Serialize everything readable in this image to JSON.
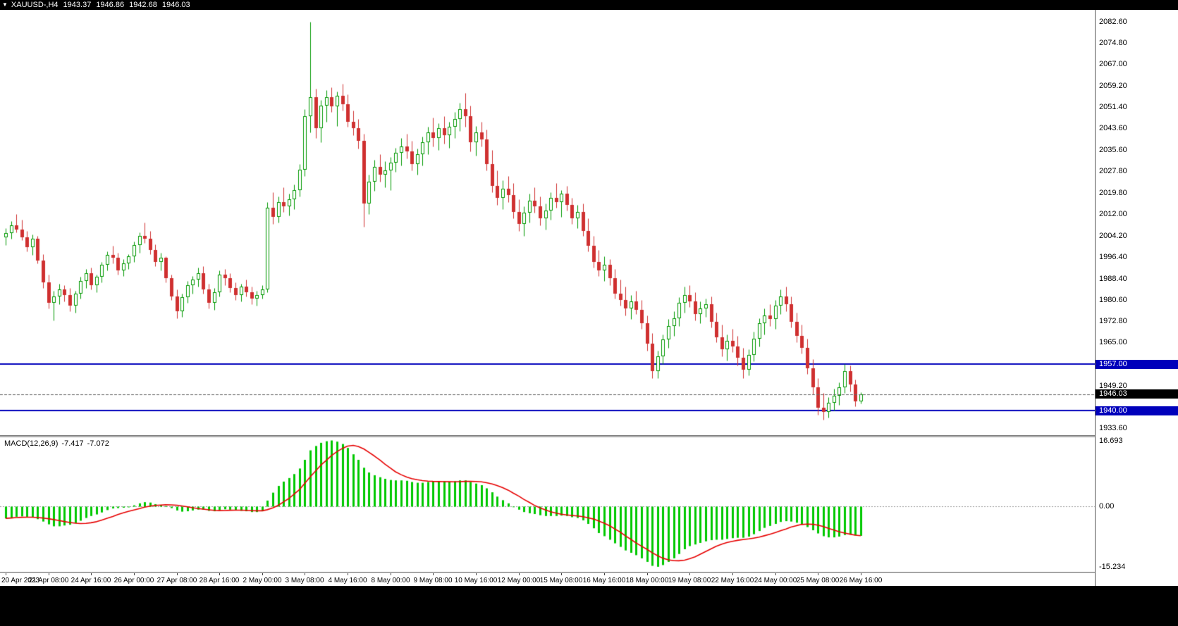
{
  "title_bar": {
    "menu_icon": "▼",
    "symbol": "XAUUSD-,H4",
    "open": "1943.37",
    "high": "1946.86",
    "low": "1942.68",
    "close": "1946.03"
  },
  "macd_label": {
    "name": "MACD(12,26,9)",
    "macd_value": "-7.417",
    "signal_value": "-7.072"
  },
  "price_scale": {
    "labels": [
      "2082.60",
      "2074.80",
      "2067.00",
      "2059.20",
      "2051.40",
      "2043.60",
      "2035.60",
      "2027.80",
      "2019.80",
      "2012.00",
      "2004.20",
      "1996.40",
      "1988.40",
      "1980.60",
      "1972.80",
      "1965.00",
      "1949.20",
      "1933.60"
    ],
    "macd_labels": [
      "16.693",
      "0.00",
      "-15.234"
    ],
    "level_boxes": [
      {
        "text": "1957.00",
        "value": 1957.0,
        "bg": "#0000bb"
      },
      {
        "text": "1946.03",
        "value": 1946.03,
        "bg": "#000000"
      },
      {
        "text": "1940.00",
        "value": 1940.0,
        "bg": "#0000bb"
      }
    ]
  },
  "x_axis": {
    "candles_per_label": 8,
    "labels": [
      "20 Apr 2023",
      "21 Apr 08:00",
      "24 Apr 16:00",
      "26 Apr 00:00",
      "27 Apr 08:00",
      "28 Apr 16:00",
      "2 May 00:00",
      "3 May 08:00",
      "4 May 16:00",
      "8 May 00:00",
      "9 May 08:00",
      "10 May 16:00",
      "12 May 00:00",
      "15 May 08:00",
      "16 May 16:00",
      "18 May 00:00",
      "19 May 08:00",
      "22 May 16:00",
      "24 May 00:00",
      "25 May 08:00",
      "26 May 16:00"
    ]
  },
  "chart_data": [
    {
      "type": "candlestick",
      "title": "XAUUSD- H4",
      "ylim": [
        1931,
        2087
      ],
      "levels": [
        1957.0,
        1940.0
      ],
      "bid": 1946.03,
      "ohlc": [
        [
          2003.5,
          2007.0,
          2000.8,
          2005.2
        ],
        [
          2005.2,
          2009.5,
          2003.0,
          2008.0
        ],
        [
          2008.0,
          2012.2,
          2005.5,
          2006.5
        ],
        [
          2006.5,
          2010.0,
          2002.5,
          2003.5
        ],
        [
          2003.5,
          2006.0,
          1998.5,
          2000.0
        ],
        [
          2000.0,
          2004.5,
          1997.0,
          2003.0
        ],
        [
          2003.0,
          2004.0,
          1994.0,
          1995.0
        ],
        [
          1995.0,
          1997.5,
          1985.0,
          1987.0
        ],
        [
          1987.0,
          1990.0,
          1977.5,
          1979.5
        ],
        [
          1979.5,
          1984.0,
          1973.1,
          1982.0
        ],
        [
          1982.0,
          1986.5,
          1979.0,
          1984.5
        ],
        [
          1984.5,
          1986.0,
          1980.0,
          1982.5
        ],
        [
          1982.5,
          1985.0,
          1976.5,
          1978.5
        ],
        [
          1978.5,
          1984.0,
          1976.0,
          1982.8
        ],
        [
          1982.8,
          1989.0,
          1981.0,
          1987.5
        ],
        [
          1987.5,
          1992.0,
          1985.0,
          1990.5
        ],
        [
          1990.5,
          1992.5,
          1984.5,
          1986.0
        ],
        [
          1986.0,
          1990.0,
          1983.5,
          1989.0
        ],
        [
          1989.0,
          1994.5,
          1987.0,
          1993.5
        ],
        [
          1993.5,
          1998.5,
          1991.5,
          1997.0
        ],
        [
          1997.0,
          2000.5,
          1994.0,
          1996.0
        ],
        [
          1996.0,
          1998.0,
          1990.0,
          1991.5
        ],
        [
          1991.5,
          1995.5,
          1989.5,
          1994.0
        ],
        [
          1994.0,
          1997.5,
          1992.0,
          1996.5
        ],
        [
          1996.5,
          2002.0,
          1994.5,
          2000.8
        ],
        [
          2000.8,
          2005.5,
          1998.0,
          2004.0
        ],
        [
          2004.0,
          2009.0,
          2001.5,
          2003.0
        ],
        [
          2003.0,
          2006.0,
          1997.5,
          1999.0
        ],
        [
          1999.0,
          2001.0,
          1993.0,
          1994.5
        ],
        [
          1994.5,
          1998.0,
          1991.5,
          1996.0
        ],
        [
          1996.0,
          1996.5,
          1987.0,
          1988.5
        ],
        [
          1988.5,
          1990.0,
          1980.5,
          1982.0
        ],
        [
          1982.0,
          1984.5,
          1974.0,
          1976.5
        ],
        [
          1976.5,
          1983.0,
          1974.5,
          1981.5
        ],
        [
          1981.5,
          1987.5,
          1979.5,
          1986.0
        ],
        [
          1986.0,
          1989.5,
          1983.0,
          1988.0
        ],
        [
          1988.0,
          1992.5,
          1985.5,
          1990.5
        ],
        [
          1990.5,
          1993.0,
          1983.0,
          1984.5
        ],
        [
          1984.5,
          1986.5,
          1977.5,
          1979.5
        ],
        [
          1979.5,
          1985.0,
          1977.0,
          1983.5
        ],
        [
          1983.5,
          1991.5,
          1982.0,
          1990.0
        ],
        [
          1990.0,
          1992.0,
          1986.0,
          1988.5
        ],
        [
          1988.5,
          1990.5,
          1983.5,
          1985.0
        ],
        [
          1985.0,
          1987.0,
          1980.5,
          1982.5
        ],
        [
          1982.5,
          1986.5,
          1980.0,
          1985.5
        ],
        [
          1985.5,
          1988.0,
          1982.0,
          1983.5
        ],
        [
          1983.5,
          1985.5,
          1979.0,
          1981.0
        ],
        [
          1981.0,
          1984.0,
          1978.5,
          1982.5
        ],
        [
          1982.5,
          1986.0,
          1981.0,
          1984.5
        ],
        [
          1984.5,
          2016.5,
          1983.5,
          2014.5
        ],
        [
          2014.5,
          2020.0,
          2008.5,
          2011.0
        ],
        [
          2011.0,
          2018.5,
          2009.0,
          2016.5
        ],
        [
          2016.5,
          2022.0,
          2013.0,
          2015.0
        ],
        [
          2015.0,
          2019.5,
          2011.5,
          2017.5
        ],
        [
          2017.5,
          2023.0,
          2014.0,
          2021.0
        ],
        [
          2021.0,
          2030.5,
          2018.5,
          2028.5
        ],
        [
          2028.5,
          2050.5,
          2026.0,
          2048.0
        ],
        [
          2048.0,
          2082.6,
          2042.0,
          2055.0
        ],
        [
          2055.0,
          2058.0,
          2040.0,
          2043.5
        ],
        [
          2043.5,
          2054.0,
          2038.5,
          2052.0
        ],
        [
          2052.0,
          2057.5,
          2046.0,
          2055.0
        ],
        [
          2055.0,
          2058.5,
          2049.5,
          2051.5
        ],
        [
          2051.5,
          2057.0,
          2044.5,
          2055.5
        ],
        [
          2055.5,
          2060.0,
          2050.0,
          2052.5
        ],
        [
          2052.5,
          2056.0,
          2044.0,
          2046.0
        ],
        [
          2046.0,
          2050.0,
          2041.0,
          2043.5
        ],
        [
          2043.5,
          2047.0,
          2036.0,
          2039.0
        ],
        [
          2039.0,
          2041.5,
          2007.5,
          2016.0
        ],
        [
          2016.0,
          2026.5,
          2012.0,
          2024.0
        ],
        [
          2024.0,
          2032.0,
          2020.5,
          2029.5
        ],
        [
          2029.5,
          2034.0,
          2024.0,
          2026.5
        ],
        [
          2026.5,
          2031.5,
          2022.0,
          2028.0
        ],
        [
          2028.0,
          2033.0,
          2021.0,
          2031.0
        ],
        [
          2031.0,
          2036.5,
          2027.5,
          2034.5
        ],
        [
          2034.5,
          2040.0,
          2030.0,
          2037.0
        ],
        [
          2037.0,
          2041.5,
          2032.5,
          2035.0
        ],
        [
          2035.0,
          2039.0,
          2028.0,
          2030.5
        ],
        [
          2030.5,
          2036.0,
          2026.5,
          2034.0
        ],
        [
          2034.0,
          2040.5,
          2030.0,
          2038.5
        ],
        [
          2038.5,
          2044.0,
          2034.0,
          2042.0
        ],
        [
          2042.0,
          2047.5,
          2037.0,
          2040.0
        ],
        [
          2040.0,
          2045.5,
          2035.5,
          2043.5
        ],
        [
          2043.5,
          2048.0,
          2038.0,
          2041.0
        ],
        [
          2041.0,
          2046.0,
          2036.5,
          2044.0
        ],
        [
          2044.0,
          2049.5,
          2040.0,
          2047.0
        ],
        [
          2047.0,
          2053.0,
          2042.5,
          2050.5
        ],
        [
          2050.5,
          2056.5,
          2044.0,
          2048.0
        ],
        [
          2048.0,
          2052.0,
          2035.0,
          2038.5
        ],
        [
          2038.5,
          2044.5,
          2033.5,
          2042.0
        ],
        [
          2042.0,
          2046.0,
          2037.0,
          2039.5
        ],
        [
          2039.5,
          2043.0,
          2028.0,
          2030.5
        ],
        [
          2030.5,
          2035.5,
          2020.0,
          2022.5
        ],
        [
          2022.5,
          2028.0,
          2015.5,
          2018.0
        ],
        [
          2018.0,
          2024.5,
          2014.0,
          2021.5
        ],
        [
          2021.5,
          2026.0,
          2016.5,
          2019.0
        ],
        [
          2019.0,
          2023.5,
          2010.5,
          2013.0
        ],
        [
          2013.0,
          2017.5,
          2006.0,
          2008.5
        ],
        [
          2008.5,
          2015.0,
          2004.0,
          2012.5
        ],
        [
          2012.5,
          2019.5,
          2009.0,
          2017.0
        ],
        [
          2017.0,
          2022.0,
          2012.5,
          2015.0
        ],
        [
          2015.0,
          2018.5,
          2008.0,
          2010.5
        ],
        [
          2010.5,
          2016.0,
          2006.5,
          2013.5
        ],
        [
          2013.5,
          2020.0,
          2010.0,
          2018.0
        ],
        [
          2018.0,
          2023.5,
          2014.5,
          2016.5
        ],
        [
          2016.5,
          2021.0,
          2011.0,
          2019.5
        ],
        [
          2019.5,
          2022.5,
          2013.5,
          2015.5
        ],
        [
          2015.5,
          2018.0,
          2008.5,
          2010.5
        ],
        [
          2010.5,
          2015.5,
          2007.0,
          2013.0
        ],
        [
          2013.0,
          2016.0,
          2004.0,
          2006.0
        ],
        [
          2006.0,
          2010.5,
          1998.5,
          2000.5
        ],
        [
          2000.5,
          2004.0,
          1992.5,
          1994.5
        ],
        [
          1994.5,
          1999.0,
          1989.5,
          1991.5
        ],
        [
          1991.5,
          1996.5,
          1987.5,
          1993.5
        ],
        [
          1993.5,
          1995.5,
          1986.0,
          1988.5
        ],
        [
          1988.5,
          1992.0,
          1981.0,
          1983.0
        ],
        [
          1983.0,
          1988.0,
          1978.5,
          1980.5
        ],
        [
          1980.5,
          1985.5,
          1975.0,
          1977.5
        ],
        [
          1977.5,
          1982.5,
          1973.5,
          1980.0
        ],
        [
          1980.0,
          1984.0,
          1975.5,
          1977.0
        ],
        [
          1977.0,
          1980.5,
          1970.0,
          1972.0
        ],
        [
          1972.0,
          1975.0,
          1962.0,
          1964.5
        ],
        [
          1964.5,
          1968.5,
          1951.9,
          1954.5
        ],
        [
          1954.5,
          1962.0,
          1952.0,
          1960.0
        ],
        [
          1960.0,
          1968.0,
          1957.0,
          1966.0
        ],
        [
          1966.0,
          1973.5,
          1963.0,
          1971.0
        ],
        [
          1971.0,
          1976.5,
          1967.5,
          1974.0
        ],
        [
          1974.0,
          1981.5,
          1971.0,
          1979.5
        ],
        [
          1979.5,
          1985.5,
          1976.0,
          1982.5
        ],
        [
          1982.5,
          1986.0,
          1978.0,
          1980.0
        ],
        [
          1980.0,
          1983.5,
          1973.0,
          1975.5
        ],
        [
          1975.5,
          1980.0,
          1972.0,
          1977.5
        ],
        [
          1977.5,
          1981.0,
          1974.5,
          1979.0
        ],
        [
          1979.0,
          1982.0,
          1970.5,
          1972.5
        ],
        [
          1972.5,
          1976.0,
          1965.0,
          1967.0
        ],
        [
          1967.0,
          1971.5,
          1960.0,
          1962.5
        ],
        [
          1962.5,
          1968.0,
          1958.5,
          1965.5
        ],
        [
          1965.5,
          1970.0,
          1961.5,
          1963.5
        ],
        [
          1963.5,
          1967.5,
          1956.5,
          1959.5
        ],
        [
          1959.5,
          1963.0,
          1951.8,
          1955.0
        ],
        [
          1955.0,
          1962.5,
          1953.0,
          1960.5
        ],
        [
          1960.5,
          1969.0,
          1958.0,
          1966.5
        ],
        [
          1966.5,
          1974.0,
          1963.5,
          1972.0
        ],
        [
          1972.0,
          1977.5,
          1968.0,
          1975.0
        ],
        [
          1975.0,
          1979.0,
          1971.0,
          1973.5
        ],
        [
          1973.5,
          1980.5,
          1970.0,
          1978.5
        ],
        [
          1978.5,
          1984.5,
          1975.5,
          1982.0
        ],
        [
          1982.0,
          1985.5,
          1976.5,
          1979.0
        ],
        [
          1979.0,
          1982.0,
          1970.5,
          1972.5
        ],
        [
          1972.5,
          1976.0,
          1965.0,
          1967.5
        ],
        [
          1967.5,
          1971.5,
          1961.0,
          1963.0
        ],
        [
          1963.0,
          1966.5,
          1953.5,
          1955.5
        ],
        [
          1955.5,
          1959.0,
          1946.0,
          1948.5
        ],
        [
          1948.5,
          1952.0,
          1938.5,
          1941.0
        ],
        [
          1941.0,
          1946.5,
          1936.8,
          1939.5
        ],
        [
          1939.5,
          1945.0,
          1937.5,
          1943.0
        ],
        [
          1943.0,
          1948.0,
          1940.0,
          1945.5
        ],
        [
          1945.5,
          1950.5,
          1942.0,
          1948.5
        ],
        [
          1948.5,
          1957.0,
          1946.5,
          1954.5
        ],
        [
          1954.5,
          1956.5,
          1947.0,
          1949.5
        ],
        [
          1949.5,
          1951.5,
          1941.5,
          1943.5
        ],
        [
          1943.37,
          1946.86,
          1942.68,
          1946.03
        ]
      ]
    },
    {
      "type": "bar",
      "name": "MACD(12,26,9)",
      "ylim": [
        -16.5,
        17.5
      ],
      "signal_period": 9,
      "current": -7.417,
      "signal_current": -7.072,
      "values": [
        -3.0,
        -2.8,
        -2.6,
        -2.5,
        -2.6,
        -2.8,
        -3.2,
        -3.8,
        -4.5,
        -5.0,
        -5.0,
        -4.8,
        -4.6,
        -4.2,
        -3.6,
        -2.9,
        -2.4,
        -2.0,
        -1.5,
        -0.9,
        -0.5,
        -0.4,
        -0.3,
        -0.1,
        0.3,
        0.8,
        1.1,
        1.0,
        0.6,
        0.4,
        0.1,
        -0.4,
        -1.0,
        -1.3,
        -1.2,
        -1.0,
        -0.8,
        -0.8,
        -1.1,
        -1.2,
        -0.9,
        -0.7,
        -0.8,
        -1.0,
        -1.1,
        -1.2,
        -1.4,
        -1.4,
        -1.2,
        1.5,
        3.5,
        5.2,
        6.3,
        7.2,
        8.2,
        9.6,
        11.8,
        14.2,
        15.3,
        16.1,
        16.5,
        16.693,
        16.4,
        15.8,
        14.8,
        13.2,
        11.8,
        9.8,
        8.6,
        7.9,
        7.4,
        7.0,
        6.7,
        6.6,
        6.6,
        6.5,
        6.2,
        6.0,
        6.0,
        6.2,
        6.3,
        6.4,
        6.4,
        6.3,
        6.4,
        6.6,
        6.6,
        6.2,
        5.8,
        5.4,
        4.6,
        3.6,
        2.5,
        1.6,
        0.8,
        0.0,
        -0.8,
        -1.4,
        -1.7,
        -1.9,
        -2.2,
        -2.4,
        -2.4,
        -2.4,
        -2.3,
        -2.4,
        -2.7,
        -2.9,
        -3.5,
        -4.4,
        -5.5,
        -6.7,
        -7.5,
        -8.4,
        -9.3,
        -10.2,
        -11.1,
        -11.7,
        -12.3,
        -13.1,
        -14.0,
        -15.0,
        -15.234,
        -14.8,
        -14.0,
        -13.1,
        -12.0,
        -10.8,
        -10.0,
        -9.6,
        -9.2,
        -8.8,
        -8.5,
        -8.4,
        -8.4,
        -8.2,
        -8.0,
        -7.9,
        -7.9,
        -7.6,
        -7.0,
        -6.2,
        -5.4,
        -4.9,
        -4.4,
        -3.9,
        -3.7,
        -3.8,
        -4.1,
        -4.5,
        -5.2,
        -6.0,
        -6.8,
        -7.5,
        -7.8,
        -7.8,
        -7.6,
        -7.2,
        -7.1,
        -7.3,
        -7.417
      ]
    }
  ],
  "colors": {
    "background": "#ffffff",
    "title_bar_bg": "#000000",
    "title_bar_text": "#ffffff",
    "bull": "#009900",
    "bull_fill": "#ffffff",
    "bear": "#cf3030",
    "histogram": "#00c800",
    "signal_line": "#e60000",
    "level_line": "#0000bb",
    "bid_line": "#666666",
    "zero_line": "#999999",
    "axis_text": "#000000"
  }
}
